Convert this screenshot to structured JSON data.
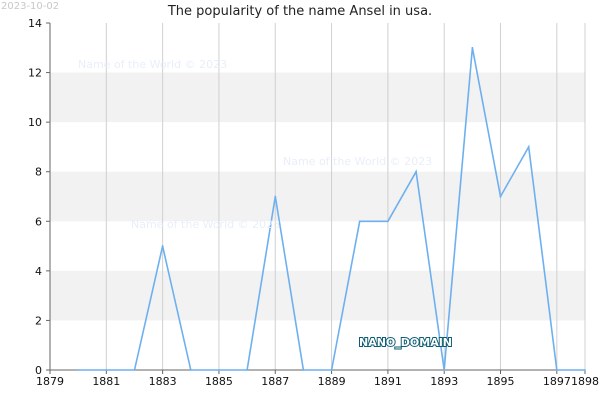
{
  "stamp": "2023-10-02",
  "watermarks": [
    "Name of the World © 2023",
    "Name of the World © 2023",
    "Name of the World © 2023"
  ],
  "badge_text": "NANO_DOMAIN",
  "colors": {
    "line": "#6eb0ef",
    "band": "#f2f2f2",
    "grid": "#d0d0d0",
    "axis": "#666666"
  },
  "chart_data": {
    "type": "line",
    "title": "The popularity of the name Ansel in usa.",
    "xlabel": "",
    "ylabel": "",
    "xlim": [
      1879,
      1898
    ],
    "ylim": [
      0,
      14
    ],
    "x_ticks": [
      1879,
      1881,
      1883,
      1885,
      1887,
      1889,
      1891,
      1893,
      1895,
      1897,
      1898
    ],
    "y_ticks": [
      0,
      2,
      4,
      6,
      8,
      10,
      12,
      14
    ],
    "grid": true,
    "legend": "none",
    "x": [
      1880,
      1881,
      1882,
      1883,
      1884,
      1885,
      1886,
      1887,
      1888,
      1889,
      1890,
      1891,
      1892,
      1893,
      1894,
      1895,
      1896,
      1897,
      1898
    ],
    "series": [
      {
        "values": [
          0,
          0,
          0,
          5,
          0,
          0,
          0,
          7,
          0,
          0,
          6,
          6,
          8,
          0,
          13,
          7,
          9,
          0,
          0
        ]
      }
    ]
  }
}
